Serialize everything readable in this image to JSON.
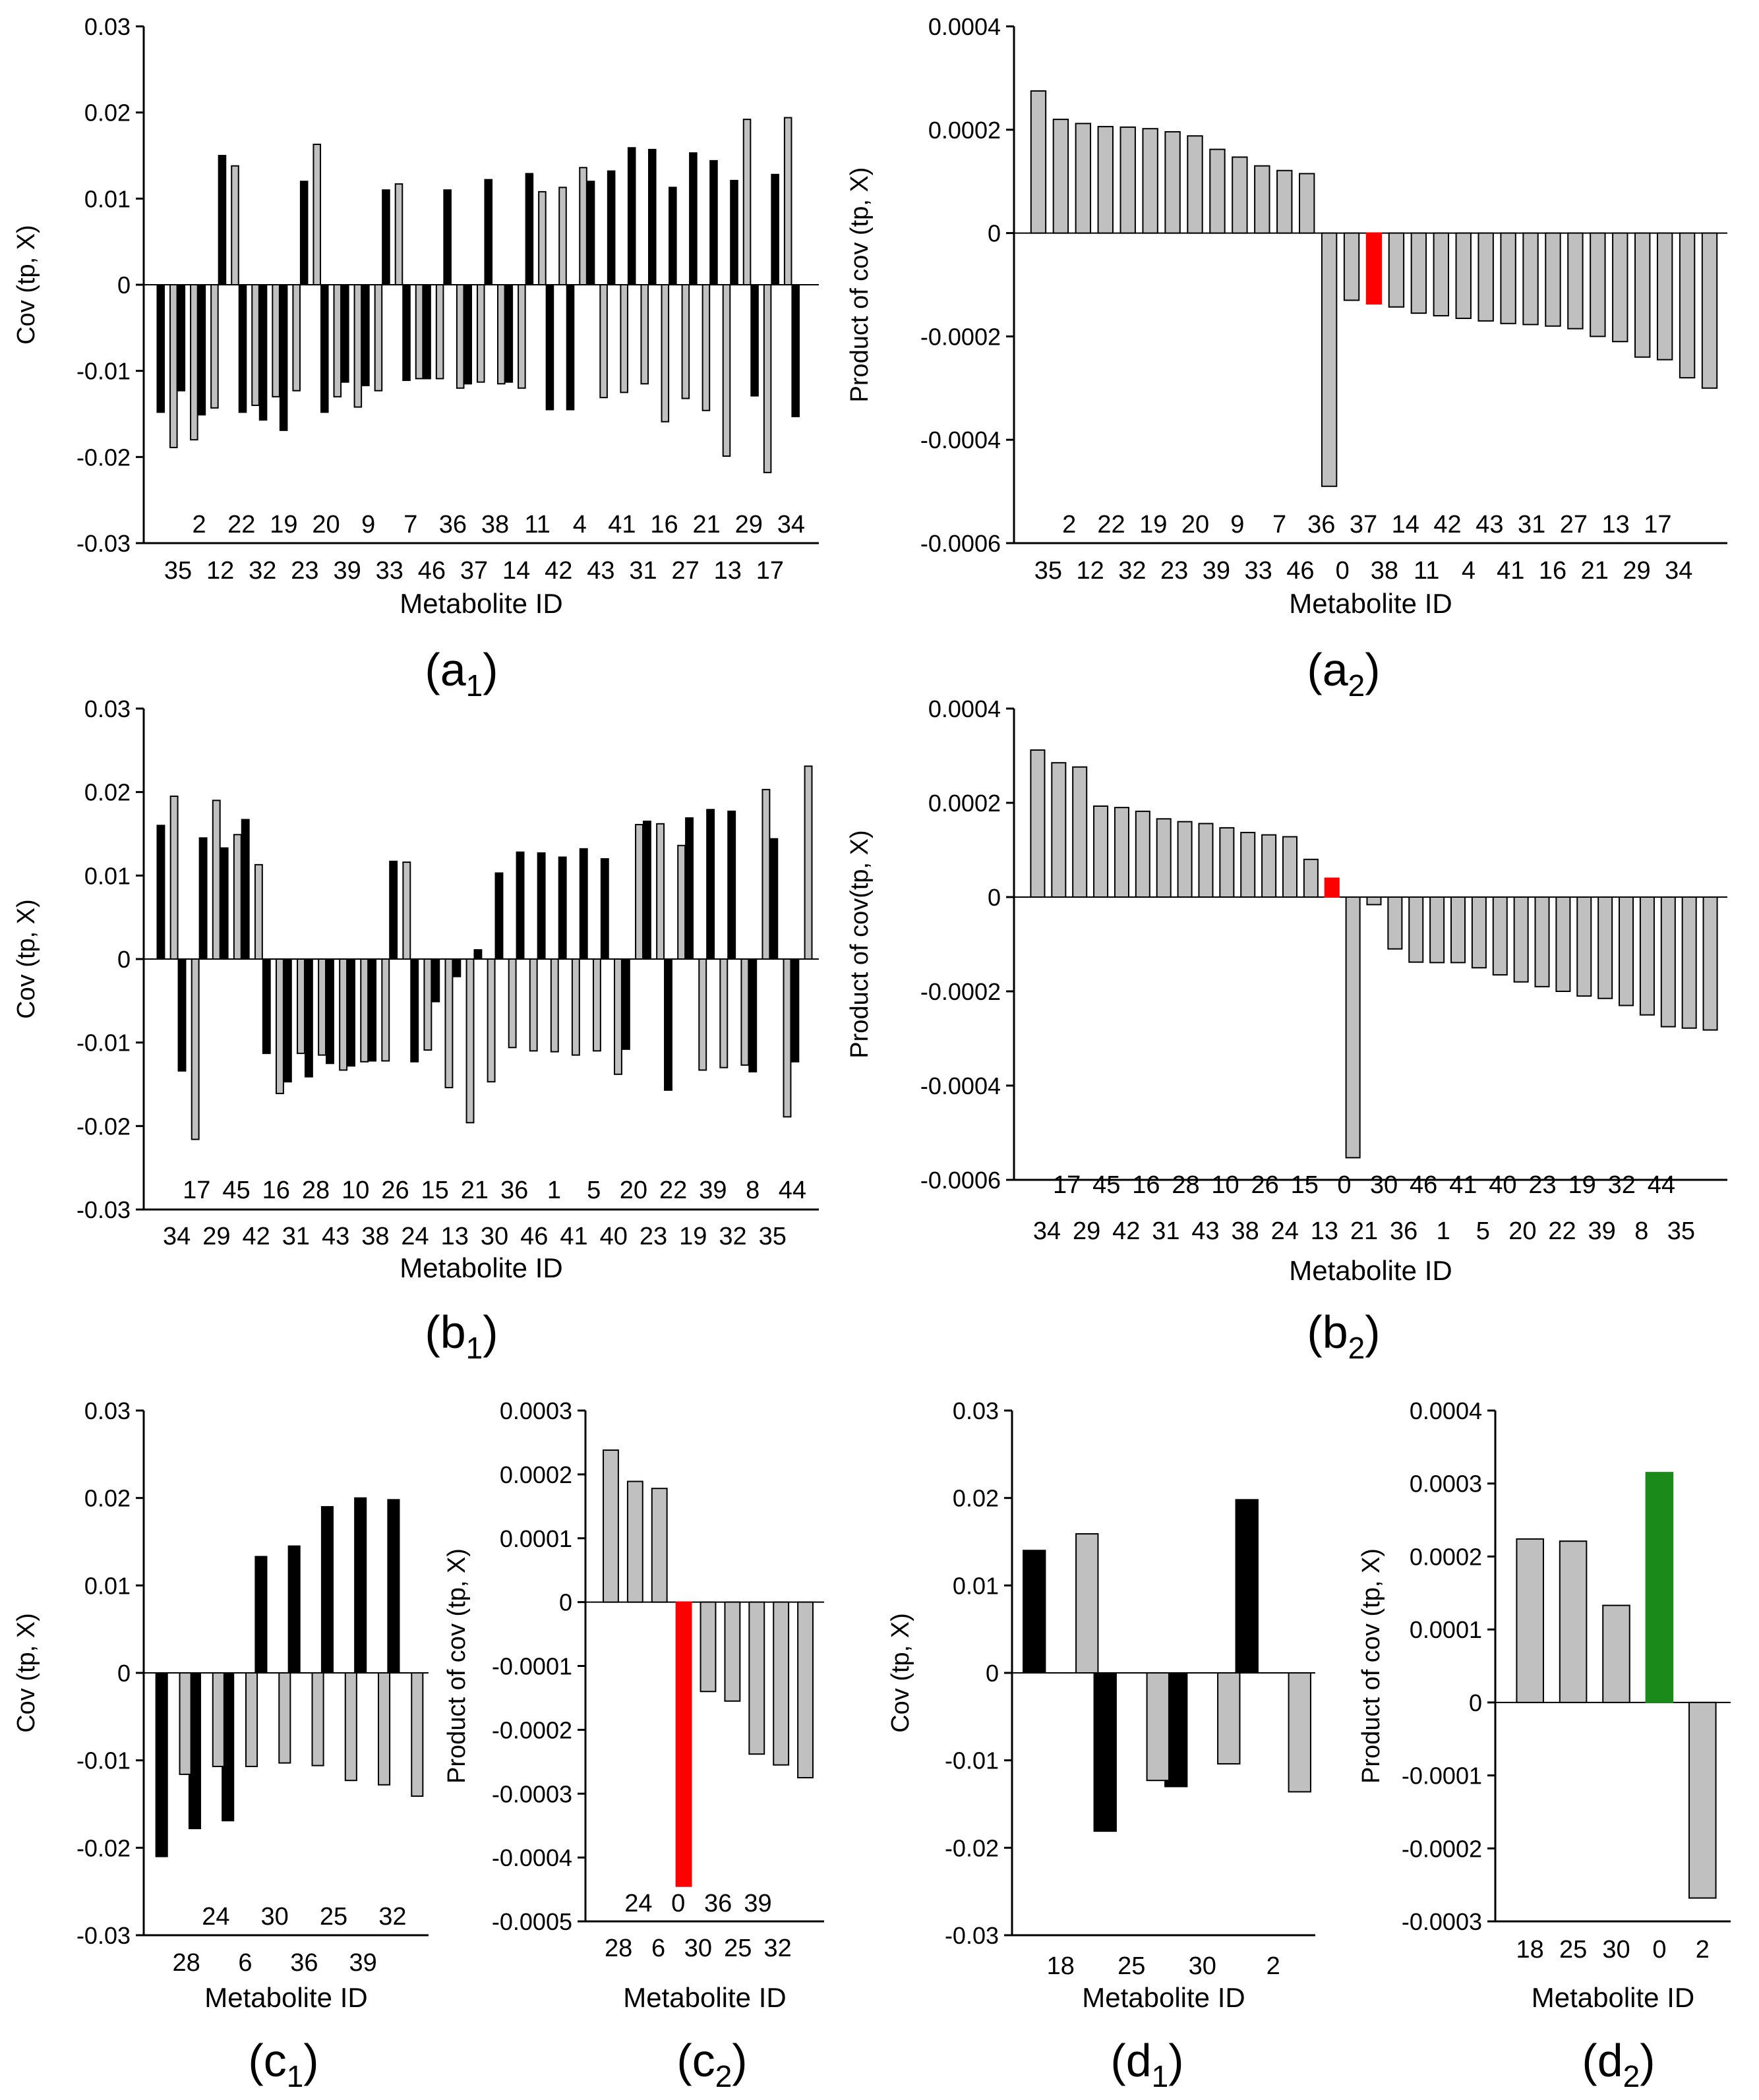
{
  "chart_data": [
    {
      "id": "a1",
      "type": "bar",
      "caption": {
        "main": "(a",
        "sub": "1",
        "end": ")"
      },
      "ylabel": "Cov (tp, X)",
      "xlabel": "Metabolite ID",
      "yticks": [
        "0.03",
        "0.02",
        "0.01",
        "0",
        "-0.01",
        "-0.02",
        "-0.03"
      ],
      "ylim": [
        -0.03,
        0.03
      ],
      "tick_values": [
        0.03,
        0.02,
        0.01,
        0,
        -0.01,
        -0.02,
        -0.03
      ],
      "lower_labels": [
        "35",
        "12",
        "32",
        "23",
        "39",
        "33",
        "46",
        "37",
        "14",
        "42",
        "43",
        "31",
        "27",
        "13",
        "17"
      ],
      "upper_labels": [
        "2",
        "22",
        "19",
        "20",
        "9",
        "7",
        "36",
        "38",
        "11",
        "4",
        "41",
        "16",
        "21",
        "29",
        "34"
      ],
      "series": [
        {
          "name": "black",
          "color": "#000000",
          "values": [
            -0.0148,
            -0.0123,
            -0.0151,
            0.015,
            -0.0148,
            -0.0157,
            -0.0169,
            0.012,
            -0.0148,
            -0.0113,
            -0.0117,
            0.011,
            -0.0111,
            -0.0109,
            0.011,
            -0.0115,
            0.0122,
            -0.0113,
            0.0129,
            -0.0145,
            -0.0145,
            0.012,
            0.0132,
            0.0159,
            0.0157,
            0.0113,
            0.0153,
            0.0144,
            0.0121,
            -0.0129,
            0.0128,
            -0.0153
          ]
        },
        {
          "name": "gray",
          "color": "#c0c0c0",
          "values": [
            -0.0189,
            -0.018,
            -0.0143,
            0.0138,
            -0.014,
            -0.013,
            -0.0123,
            0.0163,
            -0.013,
            -0.0142,
            -0.0123,
            0.0117,
            -0.0109,
            -0.0109,
            -0.012,
            -0.0113,
            -0.0115,
            -0.012,
            0.0108,
            0.0113,
            0.0136,
            -0.0131,
            -0.0125,
            -0.0115,
            -0.0159,
            -0.0132,
            -0.0146,
            -0.0199,
            0.0192,
            -0.0218,
            0.0194
          ]
        }
      ]
    },
    {
      "id": "a2",
      "type": "bar",
      "caption": {
        "main": "(a",
        "sub": "2",
        "end": ")"
      },
      "ylabel": "Product of cov (tp, X)",
      "xlabel": "Metabolite ID",
      "yticks": [
        "0.0004",
        "0.0002",
        "0",
        "-0.0002",
        "-0.0004",
        "-0.0006"
      ],
      "ylim": [
        -0.0006,
        0.0004
      ],
      "tick_values": [
        0.0004,
        0.0002,
        0,
        -0.0002,
        -0.0004,
        -0.0006
      ],
      "lower_labels": [
        "35",
        "12",
        "32",
        "23",
        "39",
        "33",
        "46",
        "0",
        "38",
        "11",
        "4",
        "41",
        "16",
        "21",
        "29",
        "34"
      ],
      "upper_labels": [
        "2",
        "22",
        "19",
        "20",
        "9",
        "7",
        "36",
        "37",
        "14",
        "42",
        "43",
        "31",
        "27",
        "13",
        "17"
      ],
      "highlight_index": 15,
      "highlight_color": "#ff0000",
      "values": [
        0.000275,
        0.00022,
        0.000212,
        0.000206,
        0.000205,
        0.000202,
        0.000196,
        0.000188,
        0.000162,
        0.000147,
        0.00013,
        0.000121,
        0.000115,
        -0.00049,
        -0.00013,
        -0.000137,
        -0.000143,
        -0.000155,
        -0.00016,
        -0.000165,
        -0.00017,
        -0.000175,
        -0.000177,
        -0.00018,
        -0.000185,
        -0.0002,
        -0.00021,
        -0.00024,
        -0.000245,
        -0.00028,
        -0.0003
      ]
    },
    {
      "id": "b1",
      "type": "bar",
      "caption": {
        "main": "(b",
        "sub": "1",
        "end": ")"
      },
      "ylabel": "Cov (tp, X)",
      "xlabel": "Metabolite ID",
      "yticks": [
        "0.03",
        "0.02",
        "0.01",
        "0",
        "-0.01",
        "-0.02",
        "-0.03"
      ],
      "ylim": [
        -0.03,
        0.03
      ],
      "tick_values": [
        0.03,
        0.02,
        0.01,
        0,
        -0.01,
        -0.02,
        -0.03
      ],
      "lower_labels": [
        "34",
        "29",
        "42",
        "31",
        "43",
        "38",
        "24",
        "13",
        "30",
        "46",
        "41",
        "40",
        "23",
        "19",
        "32",
        "35"
      ],
      "upper_labels": [
        "17",
        "45",
        "16",
        "28",
        "10",
        "26",
        "15",
        "21",
        "36",
        "1",
        "5",
        "20",
        "22",
        "39",
        "8",
        "44"
      ],
      "series": [
        {
          "name": "black",
          "color": "#000000",
          "values": [
            0.016,
            -0.0134,
            0.0145,
            0.0133,
            0.0167,
            -0.0113,
            -0.0147,
            -0.0141,
            -0.0125,
            -0.0128,
            -0.0122,
            0.0117,
            -0.0123,
            -0.0051,
            -0.0021,
            0.0011,
            0.0103,
            0.0128,
            0.0127,
            0.0122,
            0.0132,
            0.012,
            -0.0108,
            0.0165,
            -0.0157,
            0.0169,
            0.0179,
            0.0177,
            -0.0135,
            0.0144,
            -0.0123
          ]
        },
        {
          "name": "gray",
          "color": "#c0c0c0",
          "values": [
            0.0195,
            -0.0216,
            0.019,
            0.0149,
            0.0113,
            -0.0161,
            -0.0113,
            -0.0115,
            -0.0133,
            -0.0123,
            -0.0122,
            0.0116,
            -0.0109,
            -0.0154,
            -0.0196,
            -0.0147,
            -0.0106,
            -0.011,
            -0.0111,
            -0.0115,
            -0.011,
            -0.0138,
            0.0161,
            0.0162,
            0.0136,
            -0.0133,
            -0.013,
            -0.0127,
            0.0203,
            -0.0189,
            0.0231
          ]
        }
      ]
    },
    {
      "id": "b2",
      "type": "bar",
      "caption": {
        "main": "(b",
        "sub": "2",
        "end": ")"
      },
      "ylabel": "Product of cov(tp, X)",
      "xlabel": "Metabolite ID",
      "yticks": [
        "0.0004",
        "0.0002",
        "0",
        "-0.0002",
        "-0.0004",
        "-0.0006"
      ],
      "ylim": [
        -0.0006,
        0.0004
      ],
      "tick_values": [
        0.0004,
        0.0002,
        0,
        -0.0002,
        -0.0004,
        -0.0006
      ],
      "lower_labels": [
        "34",
        "29",
        "42",
        "31",
        "43",
        "38",
        "24",
        "13",
        "21",
        "36",
        "1",
        "5",
        "20",
        "22",
        "39",
        "8",
        "35"
      ],
      "upper_labels": [
        "17",
        "45",
        "16",
        "28",
        "10",
        "26",
        "15",
        "0",
        "30",
        "46",
        "41",
        "40",
        "23",
        "19",
        "32",
        "44"
      ],
      "highlight_index": 14,
      "highlight_color": "#ff0000",
      "values": [
        0.000312,
        0.000285,
        0.000276,
        0.000193,
        0.00019,
        0.000182,
        0.000166,
        0.00016,
        0.000156,
        0.000147,
        0.000137,
        0.000132,
        0.000128,
        8e-05,
        4e-05,
        -0.000553,
        -1.6e-05,
        -0.00011,
        -0.000138,
        -0.000139,
        -0.000139,
        -0.00015,
        -0.000165,
        -0.00018,
        -0.00019,
        -0.0002,
        -0.00021,
        -0.000215,
        -0.00023,
        -0.00025,
        -0.000275,
        -0.000278,
        -0.000282
      ]
    },
    {
      "id": "c1",
      "type": "bar",
      "caption": {
        "main": "(c",
        "sub": "1",
        "end": ")"
      },
      "ylabel": "Cov (tp, X)",
      "xlabel": "Metabolite ID",
      "yticks": [
        "0.03",
        "0.02",
        "0.01",
        "0",
        "-0.01",
        "-0.02",
        "-0.03"
      ],
      "ylim": [
        -0.03,
        0.03
      ],
      "tick_values": [
        0.03,
        0.02,
        0.01,
        0,
        -0.01,
        -0.02,
        -0.03
      ],
      "lower_labels": [
        "28",
        "6",
        "36",
        "39"
      ],
      "upper_labels": [
        "24",
        "30",
        "25",
        "32"
      ],
      "series": [
        {
          "name": "black",
          "color": "#000000",
          "values": [
            -0.021,
            -0.0178,
            -0.0169,
            0.0133,
            0.0145,
            0.019,
            0.02,
            0.0198
          ]
        },
        {
          "name": "gray",
          "color": "#c0c0c0",
          "values": [
            -0.0116,
            -0.0107,
            -0.0107,
            -0.0103,
            -0.0106,
            -0.0123,
            -0.0128,
            -0.0141
          ]
        }
      ]
    },
    {
      "id": "c2",
      "type": "bar",
      "caption": {
        "main": "(c",
        "sub": "2",
        "end": ")"
      },
      "ylabel": "Product of cov (tp, X)",
      "xlabel": "Metabolite ID",
      "yticks": [
        "0.0003",
        "0.0002",
        "0.0001",
        "0",
        "-0.0001",
        "-0.0002",
        "-0.0003",
        "-0.0004",
        "-0.0005"
      ],
      "ylim": [
        -0.0005,
        0.0003
      ],
      "tick_values": [
        0.0003,
        0.0002,
        0.0001,
        0,
        -0.0001,
        -0.0002,
        -0.0003,
        -0.0004,
        -0.0005
      ],
      "lower_labels": [
        "28",
        "6",
        "30",
        "25",
        "32"
      ],
      "upper_labels": [
        "24",
        "0",
        "36",
        "39"
      ],
      "highlight_index": 3,
      "highlight_color": "#ff0000",
      "values": [
        0.000238,
        0.000189,
        0.000178,
        -0.000445,
        -0.00014,
        -0.000155,
        -0.000238,
        -0.000255,
        -0.000275
      ]
    },
    {
      "id": "d1",
      "type": "bar",
      "caption": {
        "main": "(d",
        "sub": "1",
        "end": ")"
      },
      "ylabel": "Cov (tp, X)",
      "xlabel": "Metabolite ID",
      "yticks": [
        "0.03",
        "0.02",
        "0.01",
        "0",
        "-0.01",
        "-0.02",
        "-0.03"
      ],
      "ylim": [
        -0.03,
        0.03
      ],
      "tick_values": [
        0.03,
        0.02,
        0.01,
        0,
        -0.01,
        -0.02,
        -0.03
      ],
      "lower_labels": [
        "18",
        "25",
        "30",
        "2"
      ],
      "upper_labels": [],
      "series": [
        {
          "name": "black",
          "color": "#000000",
          "values": [
            0.014,
            -0.0181,
            -0.013,
            0.0198
          ]
        },
        {
          "name": "gray",
          "color": "#c0c0c0",
          "values": [
            0.0159,
            -0.0123,
            -0.0104,
            -0.0136
          ]
        }
      ]
    },
    {
      "id": "d2",
      "type": "bar",
      "caption": {
        "main": "(d",
        "sub": "2",
        "end": ")"
      },
      "ylabel": "Product of cov (tp, X)",
      "xlabel": "Metabolite ID",
      "yticks": [
        "0.0004",
        "0.0003",
        "0.0002",
        "0.0001",
        "0",
        "-0.0001",
        "-0.0002",
        "-0.0003"
      ],
      "ylim": [
        -0.0003,
        0.0004
      ],
      "tick_values": [
        0.0004,
        0.0003,
        0.0002,
        0.0001,
        0,
        -0.0001,
        -0.0002,
        -0.0003
      ],
      "lower_labels": [
        "18",
        "25",
        "30",
        "0",
        "2"
      ],
      "upper_labels": [],
      "highlight_index": 3,
      "highlight_color": "#1a8a1a",
      "values": [
        0.000224,
        0.000221,
        0.000133,
        0.000315,
        -0.000268
      ]
    }
  ]
}
